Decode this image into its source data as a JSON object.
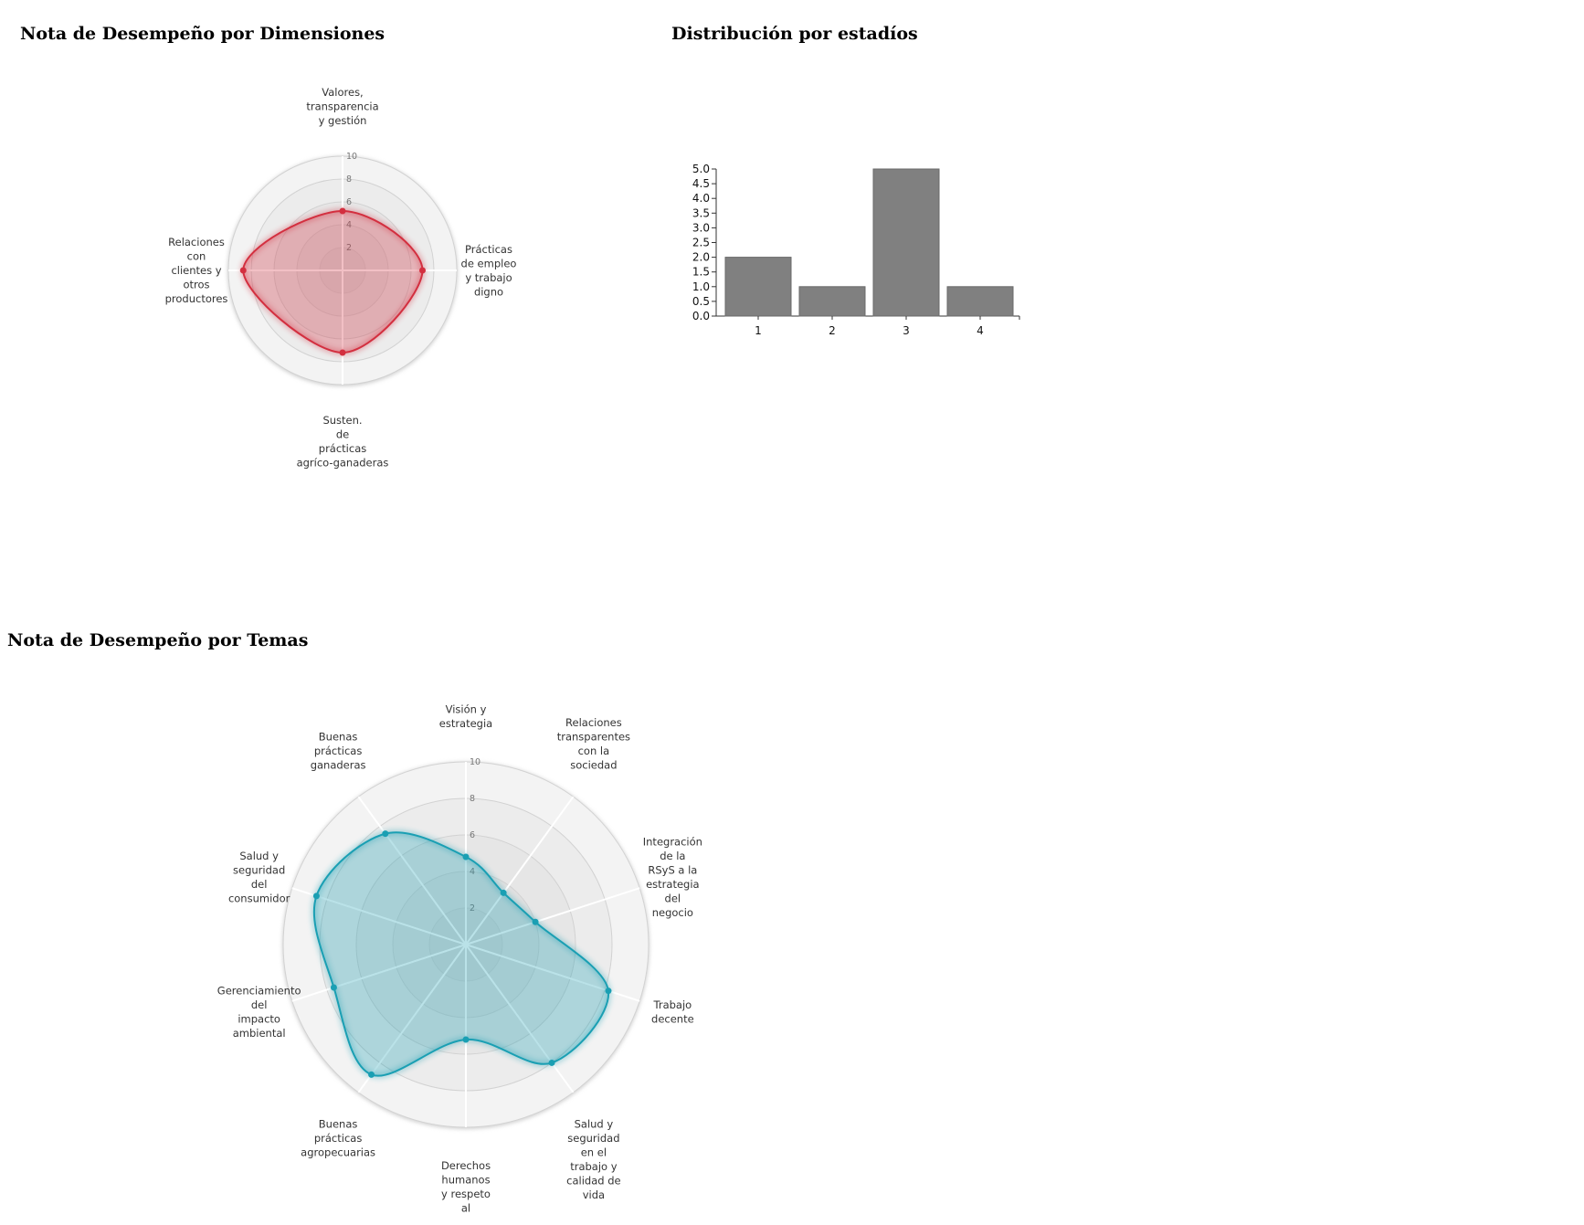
{
  "titles": {
    "dimensiones": "Nota de Desempeño por Dimensiones",
    "estadios": "Distribución por estadíos",
    "temas": "Nota de Desempeño por Temas"
  },
  "colors": {
    "dimensiones": "#d32f3f",
    "temas": "#1a9fb3",
    "bars": "#808080"
  },
  "chart_data": [
    {
      "type": "radar",
      "id": "dimensiones",
      "title": "Nota de Desempeño por Dimensiones",
      "rmax": 10,
      "ticks": [
        "2",
        "4",
        "6",
        "8",
        "10"
      ],
      "axes": [
        {
          "label": [
            "Valores,",
            "transparencia",
            "y gestión"
          ],
          "value": 5.2
        },
        {
          "label": [
            "Prácticas",
            "de empleo",
            "y trabajo",
            "digno"
          ],
          "value": 7.0
        },
        {
          "label": [
            "Susten.",
            "de",
            "prácticas",
            "agríco-ganaderas"
          ],
          "value": 7.2
        },
        {
          "label": [
            "Relaciones",
            "con",
            "clientes y",
            "otros",
            "productores"
          ],
          "value": 8.7
        }
      ]
    },
    {
      "type": "bar",
      "id": "estadios",
      "title": "Distribución por estadíos",
      "categories": [
        "1",
        "2",
        "3",
        "4"
      ],
      "values": [
        2,
        1,
        5,
        1
      ],
      "ylim": [
        0,
        5
      ],
      "yticks": [
        "0.0",
        "0.5",
        "1.0",
        "1.5",
        "2.0",
        "2.5",
        "3.0",
        "3.5",
        "4.0",
        "4.5",
        "5.0"
      ]
    },
    {
      "type": "radar",
      "id": "temas",
      "title": "Nota de Desempeño por Temas",
      "rmax": 10,
      "ticks": [
        "2",
        "4",
        "6",
        "8",
        "10"
      ],
      "axes": [
        {
          "label": [
            "Visión y",
            "estrategia"
          ],
          "value": 4.8
        },
        {
          "label": [
            "Relaciones",
            "transparentes",
            "con la",
            "sociedad"
          ],
          "value": 3.5
        },
        {
          "label": [
            "Integración",
            "de la",
            "RSyS a la",
            "estrategia",
            "del",
            "negocio"
          ],
          "value": 4.0
        },
        {
          "label": [
            "Trabajo",
            "decente"
          ],
          "value": 8.2
        },
        {
          "label": [
            "Salud y",
            "seguridad",
            "en el",
            "trabajo y",
            "calidad de",
            "vida"
          ],
          "value": 8.0
        },
        {
          "label": [
            "Derechos",
            "humanos",
            "y respeto",
            "al"
          ],
          "value": 5.2
        },
        {
          "label": [
            "Buenas",
            "prácticas",
            "agropecuarias"
          ],
          "value": 8.8
        },
        {
          "label": [
            "Gerenciamiento",
            "del",
            "impacto",
            "ambiental"
          ],
          "value": 7.6
        },
        {
          "label": [
            "Salud y",
            "seguridad",
            "del",
            "consumidor"
          ],
          "value": 8.6
        },
        {
          "label": [
            "Buenas",
            "prácticas",
            "ganaderas"
          ],
          "value": 7.5
        }
      ]
    }
  ]
}
